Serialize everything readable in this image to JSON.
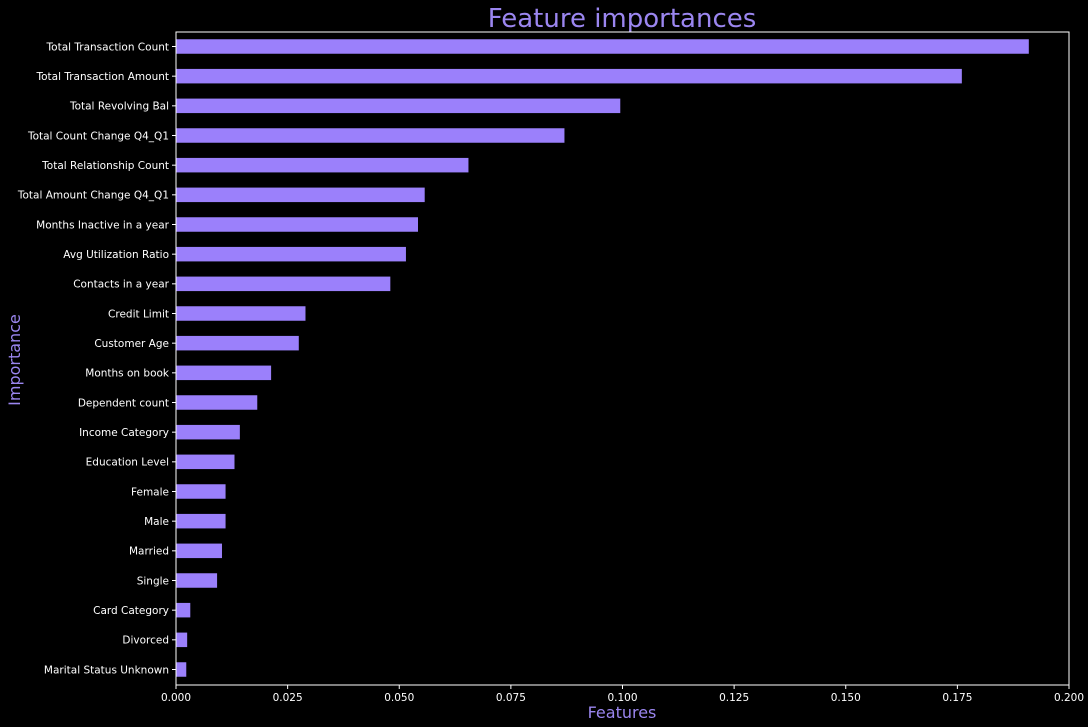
{
  "chart_data": {
    "type": "bar",
    "orientation": "horizontal",
    "title": "Feature importances",
    "xlabel": "Features",
    "ylabel": "Importance",
    "xlim": [
      0,
      0.2
    ],
    "x_ticks": [
      "0.000",
      "0.025",
      "0.050",
      "0.075",
      "0.100",
      "0.125",
      "0.150",
      "0.175",
      "0.200"
    ],
    "x_tick_values": [
      0,
      0.025,
      0.05,
      0.075,
      0.1,
      0.125,
      0.15,
      0.175,
      0.2
    ],
    "grid": false,
    "bar_color": "#9b80fb",
    "text_color": "#ffffff",
    "title_color": "#9b86f0",
    "background": "#000000",
    "categories": [
      "Total Transaction Count",
      "Total Transaction Amount",
      "Total Revolving Bal",
      "Total Count Change Q4_Q1",
      "Total Relationship Count",
      "Total Amount Change Q4_Q1",
      "Months Inactive in a year",
      "Avg Utilization Ratio",
      "Contacts in a year",
      "Credit Limit",
      "Customer Age",
      "Months on book",
      "Dependent count",
      "Income Category",
      "Education Level",
      "Female",
      "Male",
      "Married",
      "Single",
      "Card Category",
      "Divorced",
      "Marital Status Unknown"
    ],
    "values": [
      0.191,
      0.176,
      0.0995,
      0.087,
      0.0655,
      0.0557,
      0.0542,
      0.0515,
      0.048,
      0.029,
      0.0275,
      0.0213,
      0.0182,
      0.0143,
      0.0131,
      0.0111,
      0.0111,
      0.0103,
      0.0092,
      0.0032,
      0.0025,
      0.0023
    ]
  }
}
